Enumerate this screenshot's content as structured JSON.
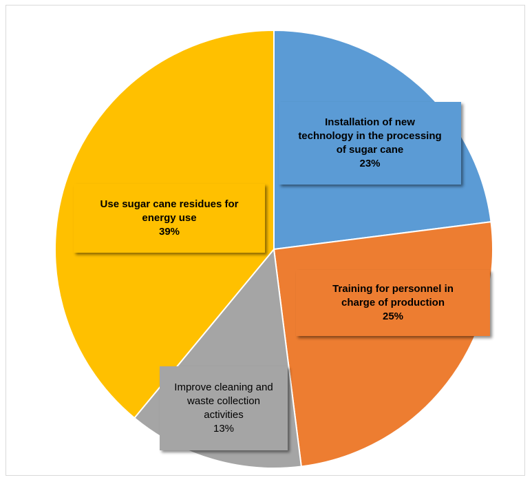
{
  "chart_data": {
    "type": "pie",
    "title": "",
    "slices": [
      {
        "label": "Installation of new technology in the processing of sugar cane",
        "value": 23,
        "percent_label": "23%",
        "color": "#5b9bd5",
        "label_lines": [
          "Installation of new",
          "technology in the processing",
          "of sugar cane"
        ],
        "label_bold": true
      },
      {
        "label": "Training for personnel in charge of production",
        "value": 25,
        "percent_label": "25%",
        "color": "#ed7d31",
        "label_lines": [
          "Training for personnel in",
          "charge of production"
        ],
        "label_bold": true
      },
      {
        "label": "Improve cleaning and waste collection activities",
        "value": 13,
        "percent_label": "13%",
        "color": "#a5a5a5",
        "label_lines": [
          "Improve cleaning and",
          "waste collection",
          "activities"
        ],
        "label_bold": false
      },
      {
        "label": "Use sugar cane residues for energy use",
        "value": 39,
        "percent_label": "39%",
        "color": "#ffc000",
        "label_lines": [
          "Use sugar cane residues for",
          "energy use"
        ],
        "label_bold": true
      }
    ],
    "legend": "none"
  }
}
